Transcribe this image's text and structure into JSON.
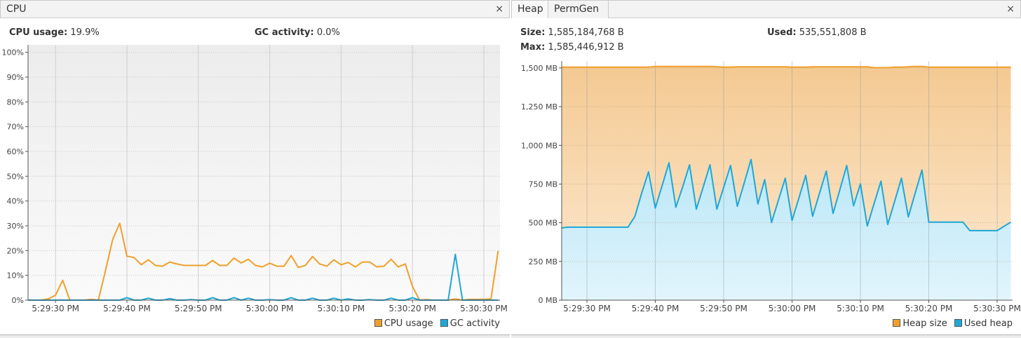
{
  "cpu_panel": {
    "tab_label": "CPU",
    "close_icon": "close-icon",
    "cpu_usage_label": "CPU usage:",
    "cpu_usage_value": "19.9%",
    "gc_activity_label": "GC activity:",
    "gc_activity_value": "0.0%"
  },
  "heap_panel": {
    "tabs": [
      {
        "label": "Heap",
        "selected": true
      },
      {
        "label": "PermGen",
        "selected": false
      }
    ],
    "close_icon": "close-icon",
    "size_label": "Size:",
    "size_value": "1,585,184,768 B",
    "used_label": "Used:",
    "used_value": "535,551,808 B",
    "max_label": "Max:",
    "max_value": "1,585,446,912 B"
  },
  "chart_data": [
    {
      "type": "line",
      "ylim": [
        0,
        103
      ],
      "xlim": [
        "5:29:26",
        "5:30:32"
      ],
      "grid": true,
      "legend_placement": "bottom-right",
      "y_ticks": [
        "0%",
        "10%",
        "20%",
        "30%",
        "40%",
        "50%",
        "60%",
        "70%",
        "80%",
        "90%",
        "100%"
      ],
      "y_tick_values": [
        0,
        10,
        20,
        30,
        40,
        50,
        60,
        70,
        80,
        90,
        100
      ],
      "x_ticks": [
        "5:29:30 PM",
        "5:29:40 PM",
        "5:29:50 PM",
        "5:30:00 PM",
        "5:30:10 PM",
        "5:30:20 PM",
        "5:30:30 PM"
      ],
      "x_tick_times": [
        "5:29:30",
        "5:29:40",
        "5:29:50",
        "5:30:00",
        "5:30:10",
        "5:30:20",
        "5:30:30"
      ],
      "start_time": "5:29:26",
      "step_seconds": 1,
      "series": [
        {
          "name": "CPU usage",
          "color": "#f0a02a",
          "values": [
            0,
            0,
            0,
            0.5,
            2,
            8,
            0,
            0,
            0,
            0.3,
            0,
            12,
            24.5,
            31,
            17.7,
            17.2,
            14.3,
            16.3,
            14,
            13.7,
            15.4,
            14.6,
            14,
            14,
            14,
            14,
            16,
            14,
            14,
            17,
            15,
            16.5,
            14,
            13.4,
            14.9,
            13.7,
            13.7,
            18,
            13.2,
            14,
            17.6,
            14.6,
            13.7,
            16.3,
            14.3,
            15.2,
            13.4,
            15.4,
            15.4,
            13.4,
            13.7,
            16.5,
            13.4,
            14.6,
            5.5,
            0,
            0.2,
            0,
            0,
            0,
            0.5,
            0,
            0.3,
            0.3,
            0.3,
            0.5,
            19.9
          ]
        },
        {
          "name": "GC activity",
          "color": "#1ea8d8",
          "values": [
            0,
            0,
            0,
            0,
            0,
            0,
            0,
            0,
            0,
            0,
            0,
            0,
            0,
            0,
            1,
            0,
            0,
            0.8,
            0,
            0,
            0.6,
            0,
            0,
            0.2,
            0,
            0,
            1,
            0,
            0,
            1,
            0,
            0.8,
            0,
            0,
            0.2,
            0,
            0,
            1,
            0,
            0,
            0.8,
            0,
            0,
            0.8,
            0,
            0.5,
            0,
            0,
            0.2,
            0,
            0,
            0.8,
            0,
            0,
            1,
            0,
            0,
            0,
            0,
            0,
            18.5,
            0,
            0,
            0,
            0,
            0,
            0
          ]
        }
      ]
    },
    {
      "type": "area",
      "ylim": [
        0,
        1545
      ],
      "xlim": [
        "5:29:26",
        "5:30:32"
      ],
      "grid": true,
      "legend_placement": "bottom-right",
      "y_ticks": [
        "0 MB",
        "250 MB",
        "500 MB",
        "750 MB",
        "1,000 MB",
        "1,250 MB",
        "1,500 MB"
      ],
      "y_tick_values": [
        0,
        250,
        500,
        750,
        1000,
        1250,
        1500
      ],
      "x_ticks": [
        "5:29:30 PM",
        "5:29:40 PM",
        "5:29:50 PM",
        "5:30:00 PM",
        "5:30:10 PM",
        "5:30:20 PM",
        "5:30:30 PM"
      ],
      "x_tick_times": [
        "5:29:30",
        "5:29:40",
        "5:29:50",
        "5:30:00",
        "5:30:10",
        "5:30:20",
        "5:30:30"
      ],
      "start_time": "5:29:26",
      "step_seconds": 1,
      "series": [
        {
          "name": "Heap size",
          "color": "#f0a02a",
          "values": [
            1505,
            1505,
            1505,
            1505,
            1505,
            1505,
            1505,
            1505,
            1505,
            1505,
            1505,
            1505,
            1505,
            1505,
            1510,
            1510,
            1510,
            1510,
            1510,
            1510,
            1510,
            1510,
            1510,
            1508,
            1505,
            1505,
            1508,
            1508,
            1508,
            1508,
            1508,
            1508,
            1508,
            1508,
            1505,
            1505,
            1505,
            1508,
            1508,
            1508,
            1508,
            1508,
            1508,
            1508,
            1508,
            1508,
            1502,
            1502,
            1502,
            1505,
            1505,
            1508,
            1510,
            1510,
            1505,
            1505,
            1505,
            1505,
            1505,
            1505,
            1505,
            1505,
            1505,
            1505,
            1505,
            1505,
            1505
          ]
        },
        {
          "name": "Used heap",
          "color": "#1ea8d8",
          "values": [
            463,
            471,
            471,
            471,
            471,
            471,
            471,
            471,
            471,
            471,
            471,
            540,
            690,
            829,
            595,
            741,
            887,
            600,
            731,
            874,
            588,
            731,
            874,
            588,
            729,
            870,
            606,
            757,
            909,
            621,
            779,
            502,
            645,
            788,
            515,
            660,
            806,
            542,
            688,
            834,
            560,
            715,
            870,
            610,
            751,
            479,
            624,
            769,
            489,
            638,
            788,
            538,
            690,
            841,
            504,
            504,
            504,
            504,
            504,
            504,
            449,
            449,
            449,
            449,
            449,
            477,
            504
          ]
        }
      ]
    }
  ]
}
